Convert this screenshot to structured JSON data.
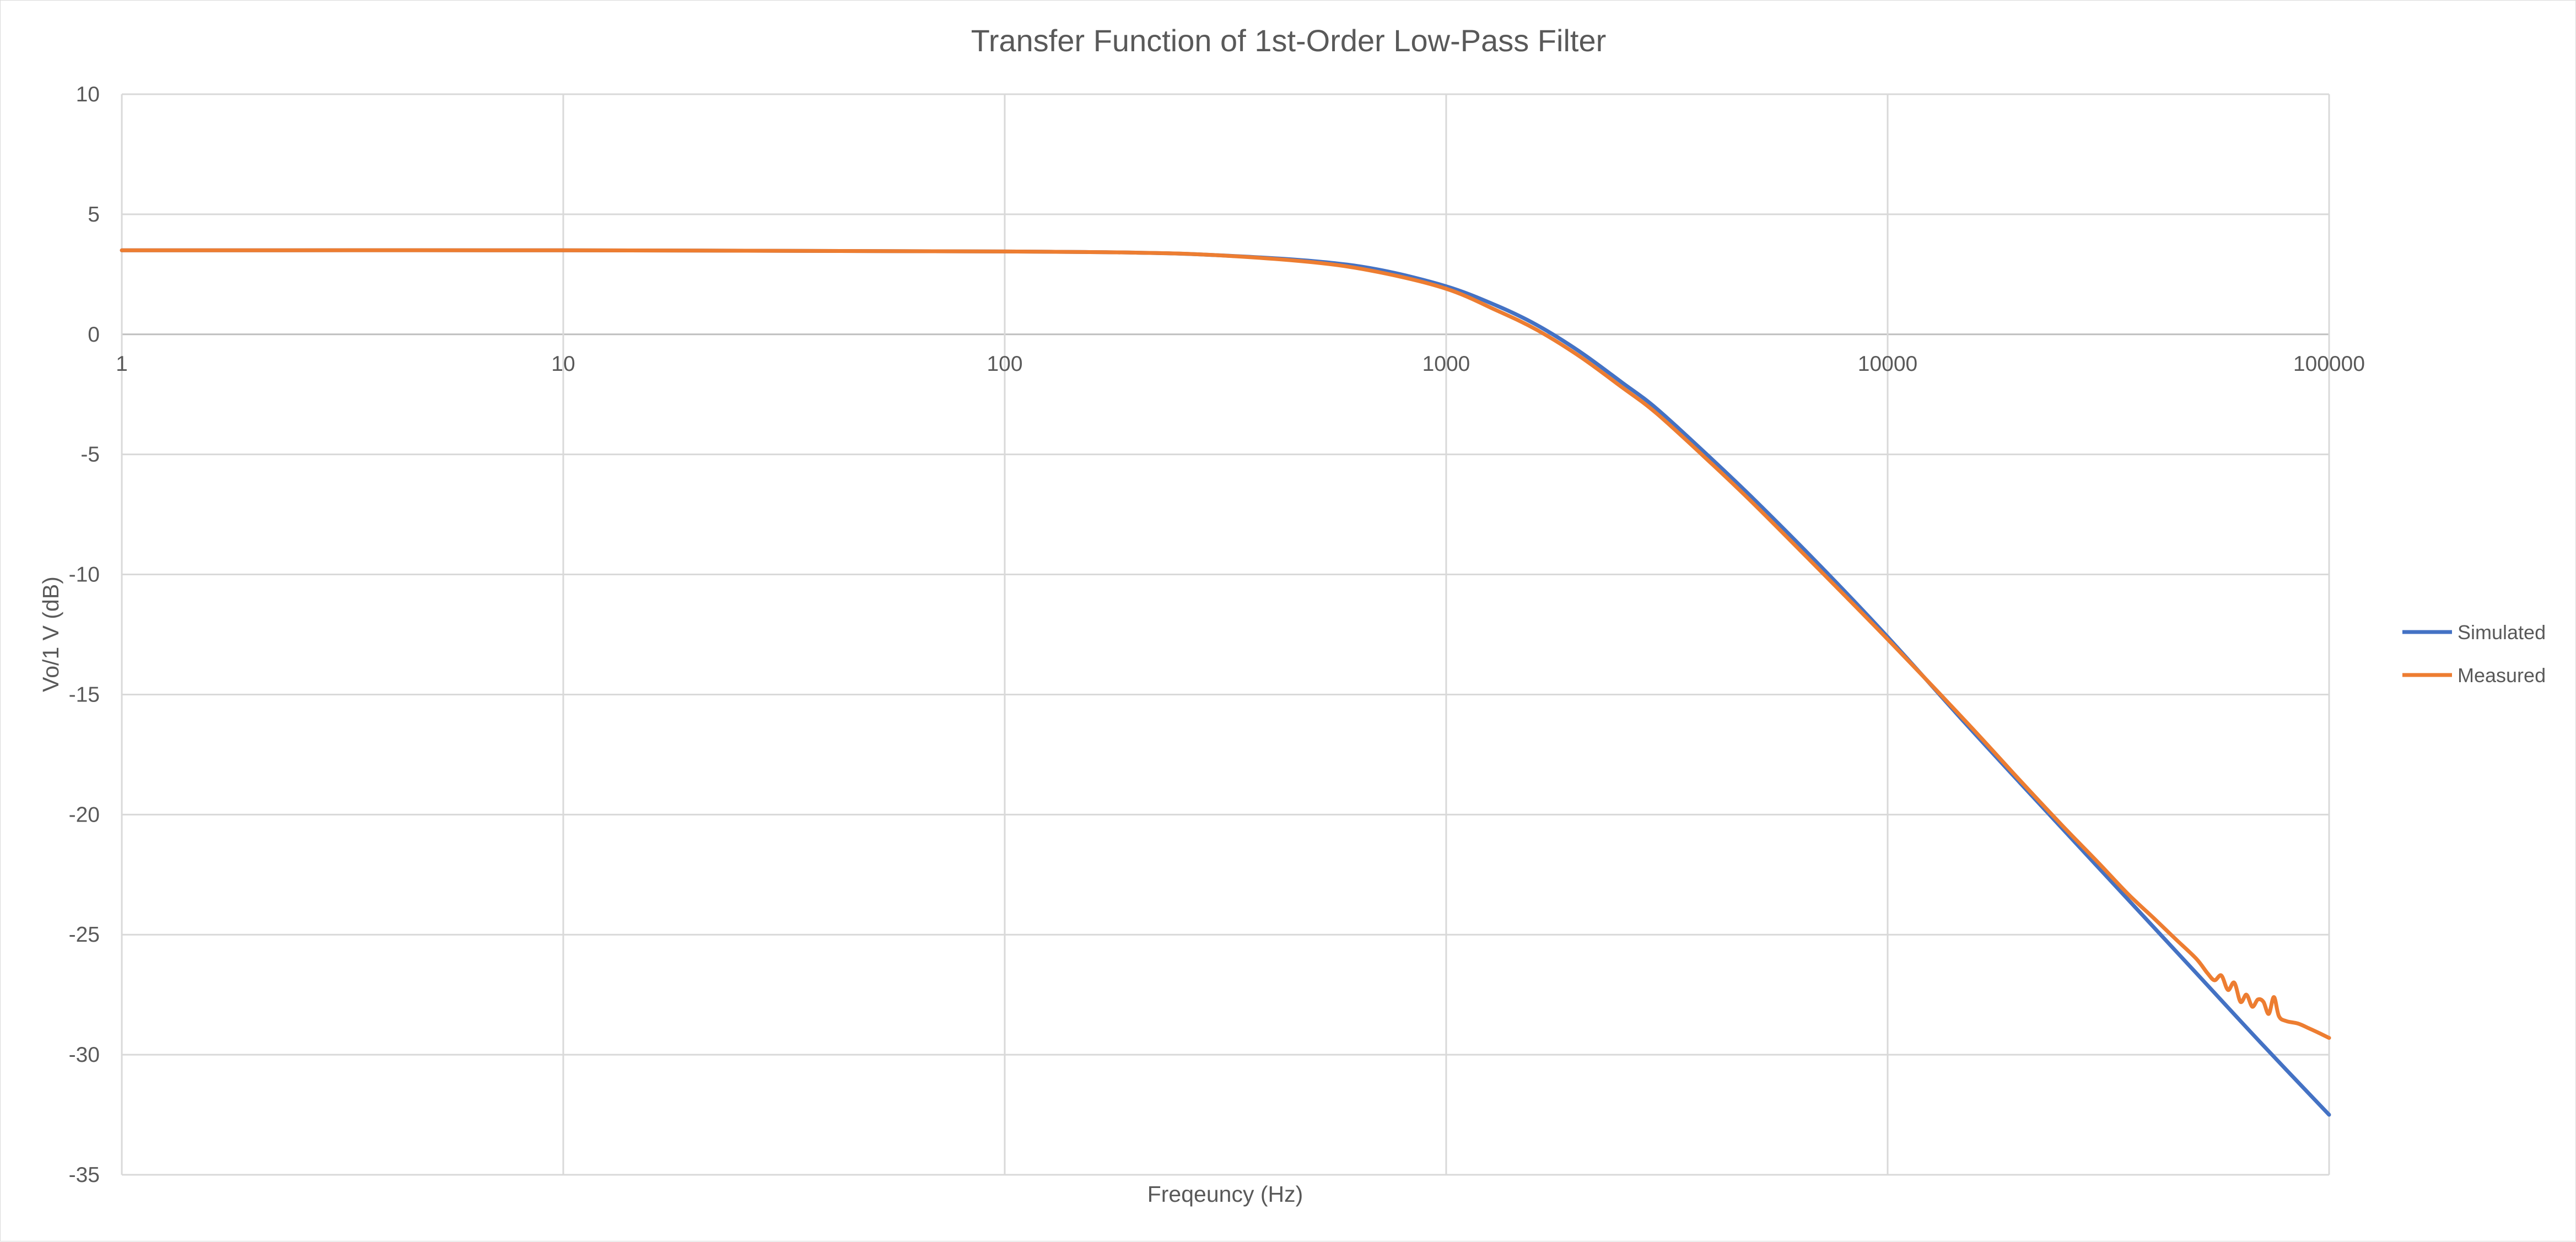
{
  "chart_data": {
    "type": "line",
    "title": "Transfer Function of 1st-Order Low-Pass Filter",
    "xlabel": "Freqeuncy (Hz)",
    "ylabel": "Vo/1 V (dB)",
    "x_scale": "log",
    "xlim": [
      1,
      100000
    ],
    "ylim": [
      -35,
      10
    ],
    "x_ticks": [
      1,
      10,
      100,
      1000,
      10000,
      100000
    ],
    "x_tick_labels": [
      "1",
      "10",
      "100",
      "1000",
      "10000",
      "100000"
    ],
    "y_ticks": [
      10,
      5,
      0,
      -5,
      -10,
      -15,
      -20,
      -25,
      -30,
      -35
    ],
    "y_tick_labels": [
      "10",
      "5",
      "0",
      "-5",
      "-10",
      "-15",
      "-20",
      "-25",
      "-30",
      "-35"
    ],
    "grid": true,
    "legend_position": "right",
    "series": [
      {
        "name": "Simulated",
        "color": "#4472c4",
        "x": [
          1,
          10,
          100,
          200,
          300,
          500,
          700,
          1000,
          1300,
          1600,
          2000,
          2500,
          3000,
          4000,
          5000,
          7000,
          10000,
          15000,
          20000,
          30000,
          50000,
          70000,
          100000
        ],
        "y": [
          3.5,
          3.5,
          3.45,
          3.4,
          3.3,
          3.05,
          2.7,
          2.0,
          1.2,
          0.4,
          -0.7,
          -2.0,
          -3.1,
          -5.2,
          -6.9,
          -9.6,
          -12.6,
          -16.2,
          -18.7,
          -22.2,
          -26.6,
          -29.5,
          -32.5
        ]
      },
      {
        "name": "Measured",
        "color": "#ed7d31",
        "x": [
          1,
          10,
          100,
          200,
          300,
          500,
          700,
          1000,
          1300,
          1600,
          2000,
          2500,
          3000,
          4000,
          5000,
          7000,
          10000,
          15000,
          20000,
          25000,
          30000,
          35000,
          40000,
          45000,
          50000,
          53000,
          55000,
          57000,
          59000,
          61000,
          63000,
          65000,
          67000,
          69000,
          71000,
          73000,
          75000,
          77000,
          80000,
          85000,
          90000,
          95000,
          100000
        ],
        "y": [
          3.5,
          3.5,
          3.45,
          3.4,
          3.3,
          3.0,
          2.6,
          1.9,
          1.0,
          0.2,
          -0.9,
          -2.2,
          -3.3,
          -5.4,
          -7.1,
          -9.8,
          -12.7,
          -16.1,
          -18.6,
          -20.5,
          -22.0,
          -23.3,
          -24.3,
          -25.2,
          -26.0,
          -26.6,
          -26.9,
          -26.7,
          -27.3,
          -27.0,
          -27.8,
          -27.5,
          -28.0,
          -27.7,
          -27.8,
          -28.3,
          -27.6,
          -28.4,
          -28.6,
          -28.7,
          -28.9,
          -29.1,
          -29.3
        ]
      }
    ]
  }
}
